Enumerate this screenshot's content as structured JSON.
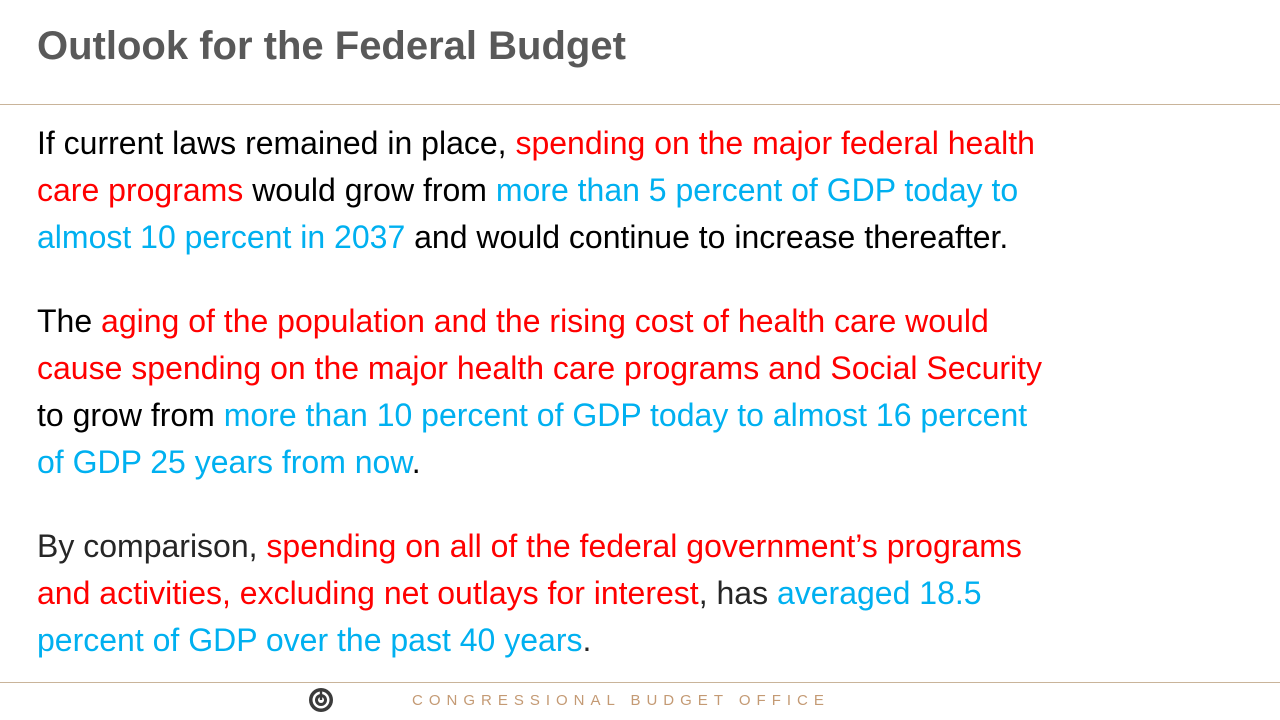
{
  "slide": {
    "title": "Outlook for the Federal Budget"
  },
  "paragraphs": {
    "p1": {
      "a": "If current laws remained in place, ",
      "b": "spending on the major federal health",
      "c": "care programs",
      "d": " would grow from ",
      "e": "more than 5 percent of GDP today to",
      "f": "almost 10 percent in 2037",
      "g": " and would continue to increase thereafter."
    },
    "p2": {
      "a": "The ",
      "b": "aging of the population and the rising cost of health care would",
      "c": "cause spending on the major health care programs and Social Security",
      "d": "to grow from ",
      "e": "more than 10 percent of GDP today to almost 16 percent",
      "f": "of GDP 25 years from now",
      "g": "."
    },
    "p3": {
      "a": "By comparison, ",
      "b": "spending on all of the federal government’s programs",
      "c": "and activities, excluding net outlays for interest",
      "d": ", has ",
      "e": "averaged 18.5",
      "f": "percent of GDP over the past 40 years",
      "g": "."
    }
  },
  "footer": {
    "org": "CONGRESSIONAL BUDGET OFFICE",
    "logo_icon": "cbo-logo-icon"
  },
  "colors": {
    "title": "#595959",
    "highlight_red": "#ff0000",
    "highlight_blue": "#00b0f0",
    "rule": "#c9b49a",
    "footer_text": "#c49a74"
  }
}
